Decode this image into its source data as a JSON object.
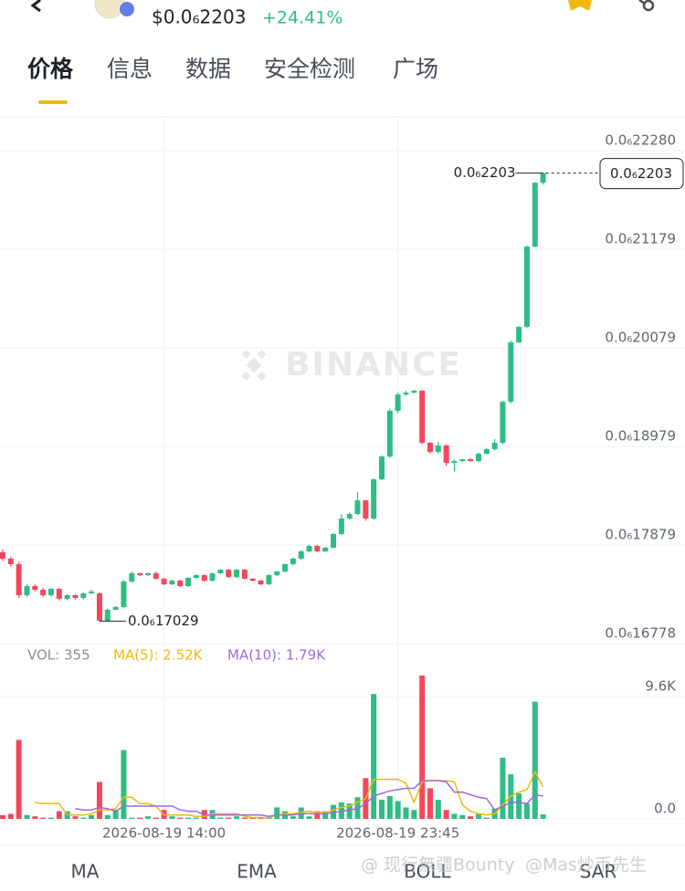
{
  "header": {
    "price": "$0.0₆2203",
    "change": "+24.41%"
  },
  "tabs": [
    "价格",
    "信息",
    "数据",
    "安全检测",
    "广场"
  ],
  "watermark": "BINANCE",
  "indicator_tabs": [
    "MA",
    "EMA",
    "BOLL",
    "SAR"
  ],
  "footer_watermarks": [
    "@ 现行無疆Bounty",
    "@Mas炒币先生"
  ],
  "chart_data": [
    {
      "type": "candlestick",
      "up_color": "#2ebd85",
      "down_color": "#f6465d",
      "ylim": [
        1.6778e-07,
        2.2637e-07
      ],
      "yticks": [
        {
          "value": 2.228e-07,
          "label": "0.0₆22280"
        },
        {
          "value": 2.1179e-07,
          "label": "0.0₆21179"
        },
        {
          "value": 2.0079e-07,
          "label": "0.0₆20079"
        },
        {
          "value": 1.8979e-07,
          "label": "0.0₆18979"
        },
        {
          "value": 1.7879e-07,
          "label": "0.0₆17879"
        },
        {
          "value": 1.6778e-07,
          "label": "0.0₆16778"
        }
      ],
      "grid": true,
      "last_price": {
        "value": 2.203e-07,
        "label": "0.0₆2203"
      },
      "high_marker": {
        "value": 2.203e-07,
        "label": "0.0₆2203"
      },
      "low_marker": {
        "value": 1.7029e-07,
        "label": "0.0₆17029"
      },
      "open": [
        1.7797e-07,
        1.7726e-07,
        1.7665e-07,
        1.7318e-07,
        1.742e-07,
        1.7379e-07,
        1.7318e-07,
        1.7389e-07,
        1.7278e-07,
        1.7318e-07,
        1.7288e-07,
        1.7339e-07,
        1.7339e-07,
        1.7033e-07,
        1.7156e-07,
        1.7186e-07,
        1.7471e-07,
        1.7563e-07,
        1.7542e-07,
        1.7563e-07,
        1.7502e-07,
        1.744e-07,
        1.7481e-07,
        1.742e-07,
        1.7512e-07,
        1.7542e-07,
        1.7481e-07,
        1.7563e-07,
        1.7603e-07,
        1.7522e-07,
        1.7603e-07,
        1.7502e-07,
        1.7481e-07,
        1.744e-07,
        1.7542e-07,
        1.7583e-07,
        1.7665e-07,
        1.7726e-07,
        1.7807e-07,
        1.7868e-07,
        1.7807e-07,
        1.7848e-07,
        1.8001e-07,
        1.8174e-07,
        1.8225e-07,
        1.8377e-07,
        1.8174e-07,
        1.8612e-07,
        1.8866e-07,
        1.9376e-07,
        1.9559e-07,
        1.9579e-07,
        1.96e-07,
        1.9019e-07,
        1.8917e-07,
        1.8989e-07,
        1.8795e-07,
        1.8815e-07,
        1.8836e-07,
        1.8815e-07,
        1.8897e-07,
        1.8948e-07,
        1.9019e-07,
        1.9477e-07,
        2.014e-07,
        2.0313e-07,
        2.1209e-07,
        2.1922e-07
      ],
      "high": [
        1.783e-07,
        1.775e-07,
        1.769e-07,
        1.744e-07,
        1.744e-07,
        1.74e-07,
        1.74e-07,
        1.74e-07,
        1.733e-07,
        1.733e-07,
        1.735e-07,
        1.738e-07,
        1.735e-07,
        1.717e-07,
        1.72e-07,
        1.749e-07,
        1.758e-07,
        1.757e-07,
        1.757e-07,
        1.758e-07,
        1.751e-07,
        1.749e-07,
        1.749e-07,
        1.752e-07,
        1.755e-07,
        1.755e-07,
        1.757e-07,
        1.761e-07,
        1.761e-07,
        1.761e-07,
        1.761e-07,
        1.751e-07,
        1.749e-07,
        1.755e-07,
        1.759e-07,
        1.767e-07,
        1.774e-07,
        1.782e-07,
        1.788e-07,
        1.788e-07,
        1.786e-07,
        1.801e-07,
        1.822e-07,
        1.824e-07,
        1.847e-07,
        1.838e-07,
        1.862e-07,
        1.888e-07,
        1.94e-07,
        1.958e-07,
        1.96e-07,
        1.961e-07,
        1.961e-07,
        1.903e-07,
        1.903e-07,
        1.9e-07,
        1.883e-07,
        1.884e-07,
        1.885e-07,
        1.891e-07,
        1.896e-07,
        1.906e-07,
        1.949e-07,
        2.016e-07,
        2.032e-07,
        2.122e-07,
        2.193e-07,
        2.203e-07
      ],
      "low": [
        1.77e-07,
        1.764e-07,
        1.729e-07,
        1.73e-07,
        1.736e-07,
        1.73e-07,
        1.73e-07,
        1.726e-07,
        1.726e-07,
        1.727e-07,
        1.727e-07,
        1.733e-07,
        1.7029e-07,
        1.703e-07,
        1.715e-07,
        1.717e-07,
        1.746e-07,
        1.753e-07,
        1.753e-07,
        1.749e-07,
        1.743e-07,
        1.743e-07,
        1.741e-07,
        1.741e-07,
        1.75e-07,
        1.747e-07,
        1.747e-07,
        1.755e-07,
        1.751e-07,
        1.751e-07,
        1.749e-07,
        1.747e-07,
        1.743e-07,
        1.743e-07,
        1.753e-07,
        1.757e-07,
        1.765e-07,
        1.771e-07,
        1.78e-07,
        1.78e-07,
        1.78e-07,
        1.784e-07,
        1.799e-07,
        1.816e-07,
        1.821e-07,
        1.815e-07,
        1.816e-07,
        1.86e-07,
        1.885e-07,
        1.935e-07,
        1.954e-07,
        1.957e-07,
        1.9e-07,
        1.89e-07,
        1.89e-07,
        1.876e-07,
        1.87e-07,
        1.88e-07,
        1.881e-07,
        1.88e-07,
        1.889e-07,
        1.893e-07,
        1.9e-07,
        1.946e-07,
        2.013e-07,
        2.03e-07,
        2.12e-07,
        2.19e-07
      ],
      "close": [
        1.7726e-07,
        1.7665e-07,
        1.7318e-07,
        1.742e-07,
        1.7379e-07,
        1.7318e-07,
        1.7389e-07,
        1.7278e-07,
        1.7318e-07,
        1.7288e-07,
        1.7339e-07,
        1.7359e-07,
        1.7033e-07,
        1.7156e-07,
        1.7186e-07,
        1.7471e-07,
        1.7563e-07,
        1.7542e-07,
        1.7563e-07,
        1.7502e-07,
        1.744e-07,
        1.7481e-07,
        1.742e-07,
        1.7512e-07,
        1.7542e-07,
        1.7481e-07,
        1.7563e-07,
        1.7603e-07,
        1.7522e-07,
        1.7603e-07,
        1.7502e-07,
        1.7481e-07,
        1.744e-07,
        1.7542e-07,
        1.7583e-07,
        1.7665e-07,
        1.7726e-07,
        1.7807e-07,
        1.7868e-07,
        1.7807e-07,
        1.7848e-07,
        1.8001e-07,
        1.8174e-07,
        1.8225e-07,
        1.8377e-07,
        1.8174e-07,
        1.8612e-07,
        1.8866e-07,
        1.9376e-07,
        1.9559e-07,
        1.9579e-07,
        1.96e-07,
        1.9019e-07,
        1.8917e-07,
        1.8989e-07,
        1.8795e-07,
        1.8815e-07,
        1.8836e-07,
        1.8815e-07,
        1.8897e-07,
        1.8948e-07,
        1.9019e-07,
        1.9477e-07,
        2.014e-07,
        2.0313e-07,
        2.1209e-07,
        2.1922e-07,
        2.203e-07
      ]
    },
    {
      "type": "volume",
      "label": "VOL: 355",
      "up_color": "#2ebd85",
      "down_color": "#f6465d",
      "ylim": [
        0,
        11606
      ],
      "yticks": [
        {
          "value": 9600,
          "label": "9.6K"
        },
        {
          "value": 0,
          "label": "0.0"
        }
      ],
      "categories": [
        null,
        null,
        null,
        null,
        null,
        null,
        null,
        null,
        null,
        null,
        null,
        null,
        null,
        null,
        null,
        null,
        null,
        null,
        null,
        null,
        "2026-08-19 14:00",
        null,
        null,
        null,
        null,
        null,
        null,
        null,
        null,
        null,
        null,
        null,
        null,
        null,
        null,
        null,
        null,
        null,
        null,
        null,
        null,
        null,
        null,
        null,
        null,
        null,
        null,
        null,
        null,
        "2026-08-19 23:45",
        null,
        null,
        null,
        null,
        null,
        null,
        null,
        null,
        null,
        null,
        null,
        null,
        null,
        null,
        null,
        null,
        null,
        null
      ],
      "values": [
        300,
        400,
        6200,
        300,
        200,
        100,
        100,
        600,
        600,
        200,
        100,
        300,
        2900,
        300,
        700,
        5400,
        100,
        100,
        200,
        100,
        700,
        200,
        100,
        100,
        100,
        700,
        700,
        100,
        100,
        200,
        100,
        100,
        100,
        100,
        900,
        600,
        200,
        900,
        200,
        600,
        600,
        1100,
        1300,
        1200,
        1700,
        3200,
        9800,
        1500,
        1800,
        1400,
        900,
        700,
        11250,
        2400,
        1500,
        700,
        400,
        300,
        200,
        400,
        100,
        800,
        4800,
        3500,
        2000,
        1200,
        9200,
        355
      ],
      "series": [
        {
          "name": "MA(5): 2.52K",
          "color": "#f0b90b",
          "values": [
            null,
            null,
            null,
            null,
            1300,
            1200,
            1200,
            1200,
            300,
            300,
            300,
            400,
            700,
            700,
            800,
            1700,
            1700,
            1200,
            1200,
            1000,
            300,
            300,
            300,
            300,
            200,
            200,
            400,
            400,
            400,
            400,
            200,
            100,
            100,
            100,
            300,
            400,
            400,
            500,
            600,
            500,
            500,
            700,
            900,
            1000,
            1300,
            1600,
            3100,
            3100,
            3100,
            3100,
            2800,
            1300,
            2900,
            3000,
            3000,
            3000,
            2900,
            1100,
            600,
            400,
            300,
            400,
            1100,
            1800,
            2100,
            2300,
            3700,
            2520
          ]
        },
        {
          "name": "MA(10): 1.79K",
          "color": "#9c6ade",
          "values": [
            null,
            null,
            null,
            null,
            null,
            null,
            null,
            null,
            null,
            800,
            700,
            700,
            900,
            800,
            600,
            1000,
            1000,
            1000,
            1000,
            1000,
            1000,
            1000,
            700,
            600,
            600,
            300,
            300,
            300,
            300,
            300,
            300,
            300,
            300,
            200,
            300,
            300,
            300,
            400,
            400,
            400,
            400,
            500,
            600,
            700,
            800,
            1200,
            1800,
            2000,
            2200,
            2300,
            2400,
            2400,
            3000,
            3000,
            3000,
            2900,
            2100,
            2100,
            1900,
            1700,
            1600,
            700,
            1000,
            1300,
            1300,
            1200,
            1900,
            1790
          ]
        }
      ]
    }
  ]
}
